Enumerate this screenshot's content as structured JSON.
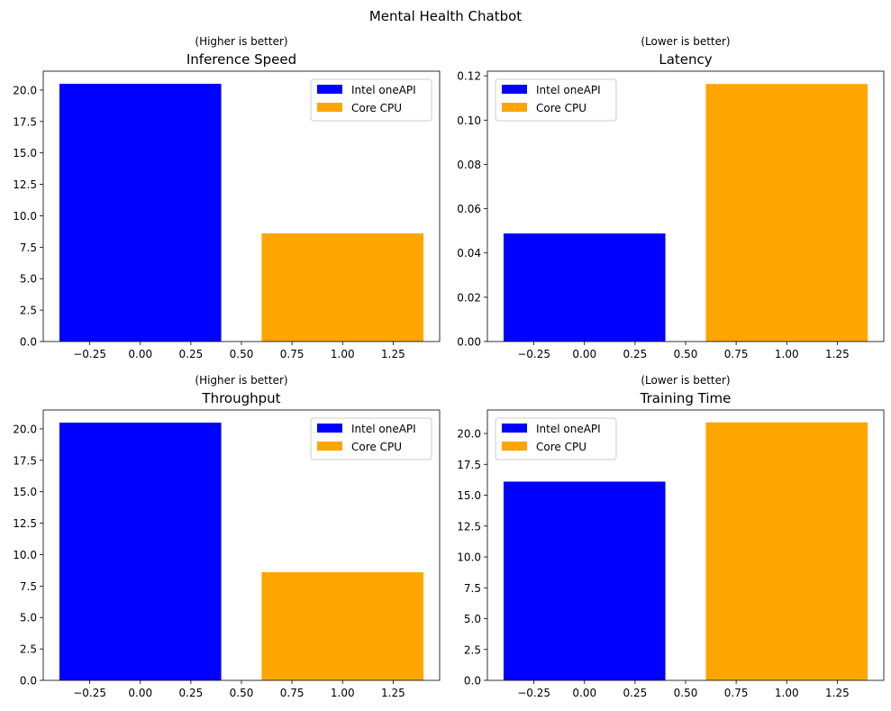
{
  "figure_title": "Mental Health Chatbot",
  "chart_data": [
    {
      "type": "bar",
      "title": "Inference Speed",
      "subtitle": "(Higher is better)",
      "series": [
        {
          "name": "Intel oneAPI",
          "x": 0,
          "value": 20.5,
          "color": "#0000ff"
        },
        {
          "name": "Core CPU",
          "x": 1,
          "value": 8.6,
          "color": "#ffa500"
        }
      ],
      "bar_width": 0.8,
      "xlim": [
        -0.48,
        1.48
      ],
      "ylim": [
        0,
        21.5
      ],
      "xticks": [
        -0.25,
        0.0,
        0.25,
        0.5,
        0.75,
        1.0,
        1.25
      ],
      "xtick_labels": [
        "−0.25",
        "0.00",
        "0.25",
        "0.50",
        "0.75",
        "1.00",
        "1.25"
      ],
      "yticks": [
        0,
        2.5,
        5,
        7.5,
        10,
        12.5,
        15,
        17.5,
        20
      ],
      "ytick_labels": [
        "0.0",
        "2.5",
        "5.0",
        "7.5",
        "10.0",
        "12.5",
        "15.0",
        "17.5",
        "20.0"
      ],
      "legend_loc": "upper right"
    },
    {
      "type": "bar",
      "title": "Latency",
      "subtitle": "(Lower is better)",
      "series": [
        {
          "name": "Intel oneAPI",
          "x": 0,
          "value": 0.0488,
          "color": "#0000ff"
        },
        {
          "name": "Core CPU",
          "x": 1,
          "value": 0.1163,
          "color": "#ffa500"
        }
      ],
      "bar_width": 0.8,
      "xlim": [
        -0.48,
        1.48
      ],
      "ylim": [
        0,
        0.1221
      ],
      "xticks": [
        -0.25,
        0.0,
        0.25,
        0.5,
        0.75,
        1.0,
        1.25
      ],
      "xtick_labels": [
        "−0.25",
        "0.00",
        "0.25",
        "0.50",
        "0.75",
        "1.00",
        "1.25"
      ],
      "yticks": [
        0,
        0.02,
        0.04,
        0.06,
        0.08,
        0.1,
        0.12
      ],
      "ytick_labels": [
        "0.00",
        "0.02",
        "0.04",
        "0.06",
        "0.08",
        "0.10",
        "0.12"
      ],
      "legend_loc": "upper left"
    },
    {
      "type": "bar",
      "title": "Throughput",
      "subtitle": "(Higher is better)",
      "series": [
        {
          "name": "Intel oneAPI",
          "x": 0,
          "value": 20.5,
          "color": "#0000ff"
        },
        {
          "name": "Core CPU",
          "x": 1,
          "value": 8.6,
          "color": "#ffa500"
        }
      ],
      "bar_width": 0.8,
      "xlim": [
        -0.48,
        1.48
      ],
      "ylim": [
        0,
        21.5
      ],
      "xticks": [
        -0.25,
        0.0,
        0.25,
        0.5,
        0.75,
        1.0,
        1.25
      ],
      "xtick_labels": [
        "−0.25",
        "0.00",
        "0.25",
        "0.50",
        "0.75",
        "1.00",
        "1.25"
      ],
      "yticks": [
        0,
        2.5,
        5,
        7.5,
        10,
        12.5,
        15,
        17.5,
        20
      ],
      "ytick_labels": [
        "0.0",
        "2.5",
        "5.0",
        "7.5",
        "10.0",
        "12.5",
        "15.0",
        "17.5",
        "20.0"
      ],
      "legend_loc": "upper right"
    },
    {
      "type": "bar",
      "title": "Training Time",
      "subtitle": "(Lower is better)",
      "series": [
        {
          "name": "Intel oneAPI",
          "x": 0,
          "value": 16.1,
          "color": "#0000ff"
        },
        {
          "name": "Core CPU",
          "x": 1,
          "value": 20.9,
          "color": "#ffa500"
        }
      ],
      "bar_width": 0.8,
      "xlim": [
        -0.48,
        1.48
      ],
      "ylim": [
        0,
        21.9
      ],
      "xticks": [
        -0.25,
        0.0,
        0.25,
        0.5,
        0.75,
        1.0,
        1.25
      ],
      "xtick_labels": [
        "−0.25",
        "0.00",
        "0.25",
        "0.50",
        "0.75",
        "1.00",
        "1.25"
      ],
      "yticks": [
        0,
        2.5,
        5,
        7.5,
        10,
        12.5,
        15,
        17.5,
        20
      ],
      "ytick_labels": [
        "0.0",
        "2.5",
        "5.0",
        "7.5",
        "10.0",
        "12.5",
        "15.0",
        "17.5",
        "20.0"
      ],
      "legend_loc": "upper left"
    }
  ]
}
